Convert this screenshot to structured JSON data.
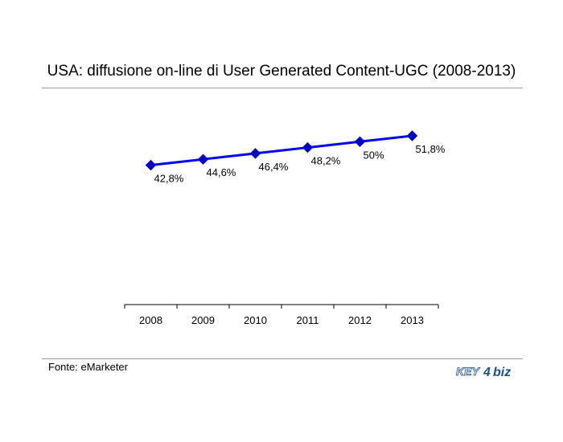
{
  "title": "USA: diffusione on-line di User Generated Content-UGC (2008-2013)",
  "source": "Fonte: eMarketer",
  "logo": {
    "left": "KEY",
    "mid": "4",
    "right": "biz"
  },
  "colors": {
    "line": "#0000ff",
    "marker": "#0000cc"
  },
  "chart_data": {
    "type": "line",
    "categories": [
      "2008",
      "2009",
      "2010",
      "2011",
      "2012",
      "2013"
    ],
    "values": [
      42.8,
      44.6,
      46.4,
      48.2,
      50,
      51.8
    ],
    "data_labels": [
      "42,8%",
      "44,6%",
      "46,4%",
      "48,2%",
      "50%",
      "51,8%"
    ],
    "title": "USA: diffusione on-line di User Generated Content-UGC (2008-2013)",
    "xlabel": "",
    "ylabel": "",
    "grid": false,
    "legend": "none"
  }
}
